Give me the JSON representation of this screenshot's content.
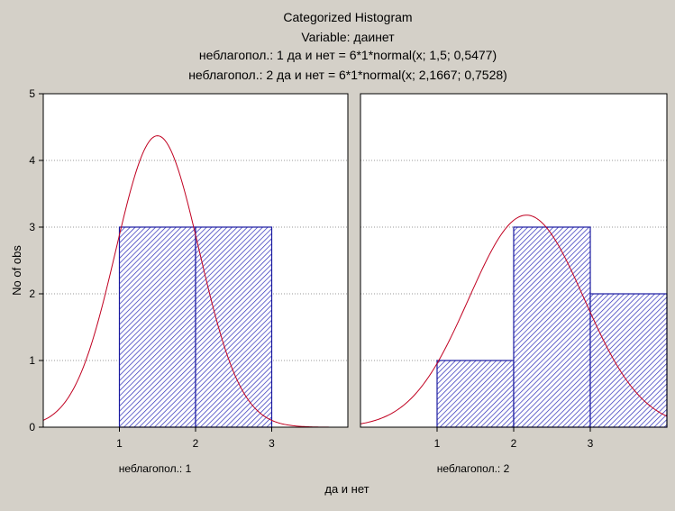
{
  "chart_data": {
    "type": "bar",
    "title_lines": [
      "Categorized Histogram",
      "Variable: даинет",
      "неблагопол.: 1 да и нет = 6*1*normal(x; 1,5; 0,5477)",
      "неблагопол.: 2 да и нет = 6*1*normal(x; 2,1667; 0,7528)"
    ],
    "ylabel": "No of obs",
    "xlabel": "да и нет",
    "ylim": [
      0,
      5
    ],
    "yticks": [
      "0",
      "1",
      "2",
      "3",
      "4",
      "5"
    ],
    "xlim": [
      0,
      4
    ],
    "grid": true,
    "colors": {
      "bar_stroke": "#1a1aa0",
      "bar_fill": "#ffffff",
      "bar_hatch": "#2a2ab8",
      "curve": "#c00020",
      "grid": "#9a9a9a",
      "background": "#d4d0c8",
      "plot_background": "#ffffff"
    },
    "panels": [
      {
        "category_label": "неблагопол.: 1",
        "x_tick_labels": [
          "1",
          "2",
          "3"
        ],
        "x_tick_values": [
          1,
          2,
          3
        ],
        "bars": [
          {
            "x_start": 1,
            "x_end": 2,
            "count": 3
          },
          {
            "x_start": 2,
            "x_end": 3,
            "count": 3
          }
        ],
        "normal_fit": {
          "n": 6,
          "bin_width": 1,
          "mean": 1.5,
          "sd": 0.5477
        }
      },
      {
        "category_label": "неблагопол.: 2",
        "x_tick_labels": [
          "1",
          "2",
          "3"
        ],
        "x_tick_values": [
          1,
          2,
          3
        ],
        "bars": [
          {
            "x_start": 1,
            "x_end": 2,
            "count": 1
          },
          {
            "x_start": 2,
            "x_end": 3,
            "count": 3
          },
          {
            "x_start": 3,
            "x_end": 4,
            "count": 2
          }
        ],
        "normal_fit": {
          "n": 6,
          "bin_width": 1,
          "mean": 2.1667,
          "sd": 0.7528
        }
      }
    ]
  }
}
